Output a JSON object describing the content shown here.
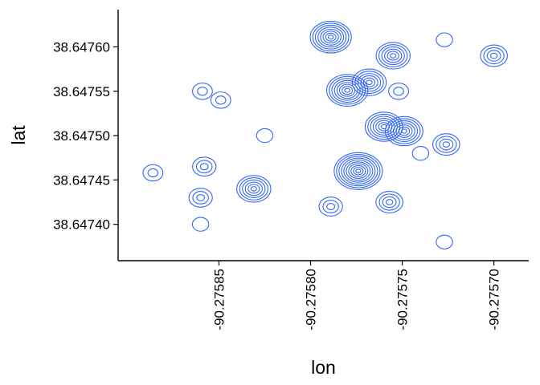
{
  "chart_data": {
    "type": "contour",
    "title": "",
    "xlabel": "lon",
    "ylabel": "lat",
    "xlim": [
      -90.275905,
      -90.275681
    ],
    "ylim": [
      38.647359,
      38.647642
    ],
    "x_ticks": [
      -90.27585,
      -90.2758,
      -90.27575,
      -90.2757
    ],
    "x_tick_labels": [
      "-90.27585",
      "-90.27580",
      "-90.27575",
      "-90.27570"
    ],
    "y_ticks": [
      38.6474,
      38.64745,
      38.6475,
      38.64755,
      38.6476
    ],
    "y_tick_labels": [
      "38.64740",
      "38.64745",
      "38.64750",
      "38.64755",
      "38.64760"
    ],
    "grid": false,
    "legend": "none",
    "line_color": "#3366FF",
    "density_peaks": [
      {
        "x": -90.275789,
        "y": 38.647611,
        "levels": 8
      },
      {
        "x": -90.27578,
        "y": 38.647551,
        "levels": 8
      },
      {
        "x": -90.275768,
        "y": 38.64756,
        "levels": 6
      },
      {
        "x": -90.275774,
        "y": 38.64746,
        "levels": 10
      },
      {
        "x": -90.27576,
        "y": 38.64751,
        "levels": 7
      },
      {
        "x": -90.275755,
        "y": 38.64759,
        "levels": 6
      },
      {
        "x": -90.275749,
        "y": 38.647505,
        "levels": 7
      },
      {
        "x": -90.275726,
        "y": 38.64749,
        "levels": 4
      },
      {
        "x": -90.2757,
        "y": 38.64759,
        "levels": 4
      },
      {
        "x": -90.275757,
        "y": 38.647425,
        "levels": 4
      },
      {
        "x": -90.275831,
        "y": 38.64744,
        "levels": 6
      },
      {
        "x": -90.275858,
        "y": 38.647465,
        "levels": 3
      },
      {
        "x": -90.27586,
        "y": 38.64743,
        "levels": 3
      },
      {
        "x": -90.275789,
        "y": 38.64742,
        "levels": 3
      },
      {
        "x": -90.275859,
        "y": 38.64755,
        "levels": 2
      },
      {
        "x": -90.275849,
        "y": 38.64754,
        "levels": 2
      },
      {
        "x": -90.275886,
        "y": 38.647458,
        "levels": 2
      },
      {
        "x": -90.27586,
        "y": 38.6474,
        "levels": 1
      },
      {
        "x": -90.275825,
        "y": 38.6475,
        "levels": 1
      },
      {
        "x": -90.275752,
        "y": 38.64755,
        "levels": 2
      },
      {
        "x": -90.27574,
        "y": 38.64748,
        "levels": 1
      },
      {
        "x": -90.275727,
        "y": 38.64738,
        "levels": 1
      },
      {
        "x": -90.275727,
        "y": 38.647608,
        "levels": 1
      }
    ]
  }
}
